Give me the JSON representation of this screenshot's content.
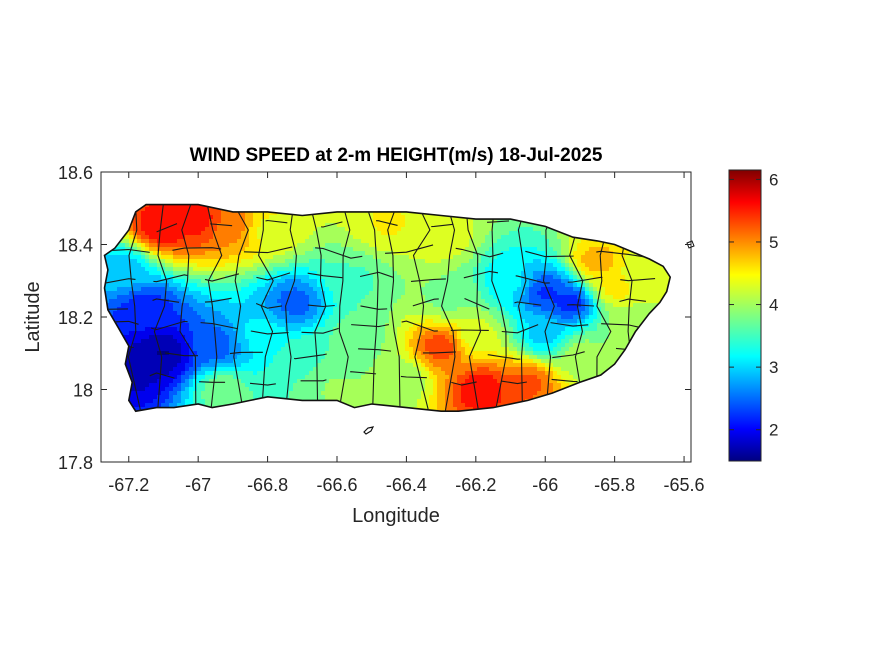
{
  "title": "WIND SPEED at 2-m HEIGHT(m/s) 18-Jul-2025",
  "xlabel": "Longitude",
  "ylabel": "Latitude",
  "xlim": [
    -67.28,
    -65.58
  ],
  "ylim": [
    17.8,
    18.6
  ],
  "xticks": [
    {
      "value": -67.2,
      "label": "-67.2"
    },
    {
      "value": -67.0,
      "label": "-67"
    },
    {
      "value": -66.8,
      "label": "-66.8"
    },
    {
      "value": -66.6,
      "label": "-66.6"
    },
    {
      "value": -66.4,
      "label": "-66.4"
    },
    {
      "value": -66.2,
      "label": "-66.2"
    },
    {
      "value": -66.0,
      "label": "-66"
    },
    {
      "value": -65.8,
      "label": "-65.8"
    },
    {
      "value": -65.6,
      "label": "-65.6"
    }
  ],
  "yticks": [
    {
      "value": 18.6,
      "label": "18.6"
    },
    {
      "value": 18.4,
      "label": "18.4"
    },
    {
      "value": 18.2,
      "label": "18.2"
    },
    {
      "value": 18.0,
      "label": "18"
    },
    {
      "value": 17.8,
      "label": "17.8"
    }
  ],
  "colorbar": {
    "colormap": "jet",
    "range": [
      1.5,
      6.15
    ],
    "ticks": [
      {
        "value": 2,
        "label": "2"
      },
      {
        "value": 3,
        "label": "3"
      },
      {
        "value": 4,
        "label": "4"
      },
      {
        "value": 5,
        "label": "5"
      },
      {
        "value": 6,
        "label": "6"
      }
    ]
  },
  "chart_data": {
    "type": "heatmap",
    "title": "WIND SPEED at 2-m HEIGHT(m/s) 18-Jul-2025",
    "xlabel": "Longitude",
    "ylabel": "Latitude",
    "units": "m/s",
    "xlim": [
      -67.28,
      -65.58
    ],
    "ylim": [
      17.8,
      18.6
    ],
    "grid": false,
    "value_range": [
      1.5,
      6.15
    ],
    "region": "Puerto Rico",
    "island_outline": [
      [
        -67.27,
        18.37
      ],
      [
        -67.24,
        18.39
      ],
      [
        -67.2,
        18.44
      ],
      [
        -67.18,
        18.49
      ],
      [
        -67.15,
        18.51
      ],
      [
        -67.1,
        18.51
      ],
      [
        -67.0,
        18.51
      ],
      [
        -66.9,
        18.49
      ],
      [
        -66.8,
        18.49
      ],
      [
        -66.7,
        18.48
      ],
      [
        -66.6,
        18.49
      ],
      [
        -66.5,
        18.49
      ],
      [
        -66.4,
        18.49
      ],
      [
        -66.3,
        18.48
      ],
      [
        -66.2,
        18.47
      ],
      [
        -66.1,
        18.47
      ],
      [
        -66.0,
        18.45
      ],
      [
        -65.92,
        18.42
      ],
      [
        -65.85,
        18.41
      ],
      [
        -65.8,
        18.4
      ],
      [
        -65.75,
        18.38
      ],
      [
        -65.7,
        18.36
      ],
      [
        -65.66,
        18.34
      ],
      [
        -65.64,
        18.31
      ],
      [
        -65.65,
        18.27
      ],
      [
        -65.67,
        18.24
      ],
      [
        -65.7,
        18.21
      ],
      [
        -65.74,
        18.16
      ],
      [
        -65.77,
        18.11
      ],
      [
        -65.8,
        18.07
      ],
      [
        -65.84,
        18.04
      ],
      [
        -65.9,
        18.02
      ],
      [
        -65.98,
        17.99
      ],
      [
        -66.05,
        17.97
      ],
      [
        -66.15,
        17.95
      ],
      [
        -66.25,
        17.94
      ],
      [
        -66.3,
        17.94
      ],
      [
        -66.4,
        17.95
      ],
      [
        -66.5,
        17.96
      ],
      [
        -66.55,
        17.95
      ],
      [
        -66.6,
        17.97
      ],
      [
        -66.7,
        17.97
      ],
      [
        -66.8,
        17.98
      ],
      [
        -66.85,
        17.97
      ],
      [
        -66.9,
        17.96
      ],
      [
        -66.96,
        17.95
      ],
      [
        -67.0,
        17.96
      ],
      [
        -67.07,
        17.95
      ],
      [
        -67.12,
        17.95
      ],
      [
        -67.18,
        17.94
      ],
      [
        -67.2,
        17.97
      ],
      [
        -67.19,
        18.02
      ],
      [
        -67.21,
        18.07
      ],
      [
        -67.2,
        18.12
      ],
      [
        -67.23,
        18.17
      ],
      [
        -67.26,
        18.22
      ],
      [
        -67.27,
        18.28
      ],
      [
        -67.26,
        18.33
      ]
    ],
    "wind_field_anchors": [
      {
        "lon": -67.1,
        "lat": 18.1,
        "speed": 1.6
      },
      {
        "lon": -67.18,
        "lat": 18.05,
        "speed": 1.8
      },
      {
        "lon": -67.15,
        "lat": 18.22,
        "speed": 2.2
      },
      {
        "lon": -67.22,
        "lat": 18.33,
        "speed": 3.0
      },
      {
        "lon": -66.95,
        "lat": 18.12,
        "speed": 2.5
      },
      {
        "lon": -66.93,
        "lat": 18.0,
        "speed": 3.8
      },
      {
        "lon": -67.1,
        "lat": 18.45,
        "speed": 5.6
      },
      {
        "lon": -67.0,
        "lat": 18.47,
        "speed": 5.5
      },
      {
        "lon": -66.9,
        "lat": 18.45,
        "speed": 5.0
      },
      {
        "lon": -66.8,
        "lat": 18.44,
        "speed": 4.3
      },
      {
        "lon": -66.72,
        "lat": 18.24,
        "speed": 2.5
      },
      {
        "lon": -66.82,
        "lat": 18.15,
        "speed": 3.2
      },
      {
        "lon": -66.7,
        "lat": 18.08,
        "speed": 3.6
      },
      {
        "lon": -66.55,
        "lat": 18.3,
        "speed": 3.6
      },
      {
        "lon": -66.45,
        "lat": 18.46,
        "speed": 4.4
      },
      {
        "lon": -66.3,
        "lat": 18.42,
        "speed": 4.3
      },
      {
        "lon": -66.28,
        "lat": 18.25,
        "speed": 3.8
      },
      {
        "lon": -66.42,
        "lat": 18.03,
        "speed": 3.9
      },
      {
        "lon": -66.3,
        "lat": 18.12,
        "speed": 5.3
      },
      {
        "lon": -66.18,
        "lat": 18.0,
        "speed": 5.6
      },
      {
        "lon": -66.05,
        "lat": 18.02,
        "speed": 5.2
      },
      {
        "lon": -66.2,
        "lat": 18.15,
        "speed": 4.2
      },
      {
        "lon": -66.1,
        "lat": 18.3,
        "speed": 3.2
      },
      {
        "lon": -66.0,
        "lat": 18.27,
        "speed": 2.3
      },
      {
        "lon": -65.93,
        "lat": 18.24,
        "speed": 2.2
      },
      {
        "lon": -66.0,
        "lat": 18.15,
        "speed": 3.0
      },
      {
        "lon": -65.9,
        "lat": 18.1,
        "speed": 4.0
      },
      {
        "lon": -65.85,
        "lat": 18.35,
        "speed": 4.8
      },
      {
        "lon": -65.8,
        "lat": 18.28,
        "speed": 4.5
      },
      {
        "lon": -65.72,
        "lat": 18.32,
        "speed": 4.2
      },
      {
        "lon": -65.75,
        "lat": 18.18,
        "speed": 4.0
      },
      {
        "lon": -66.55,
        "lat": 18.15,
        "speed": 3.7
      },
      {
        "lon": -66.6,
        "lat": 18.0,
        "speed": 3.9
      }
    ]
  }
}
